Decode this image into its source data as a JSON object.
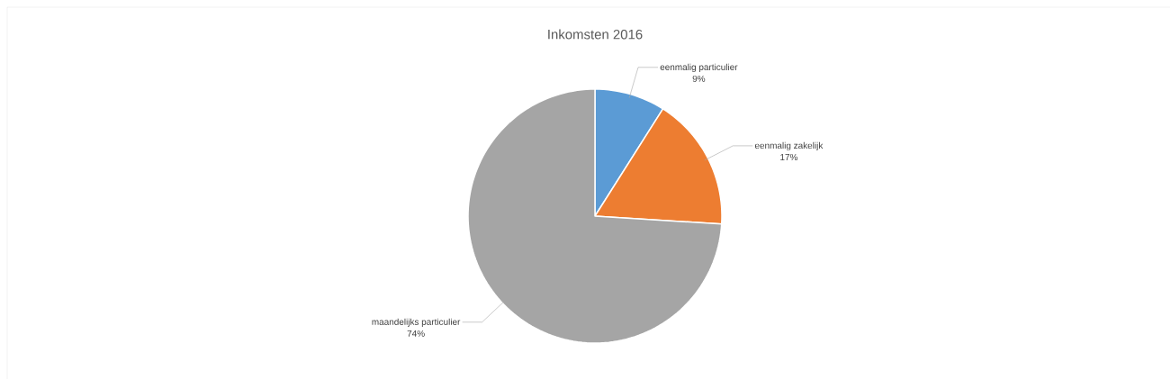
{
  "chart_data": {
    "type": "pie",
    "title": "Inkomsten 2016",
    "categories": [
      "eenmalig particulier",
      "eenmalig zakelijk",
      "maandelijks particulier"
    ],
    "values": [
      9,
      17,
      74
    ],
    "value_labels": [
      "9%",
      "17%",
      "74%"
    ],
    "colors": [
      "#5b9bd5",
      "#ed7d31",
      "#a5a5a5"
    ]
  }
}
